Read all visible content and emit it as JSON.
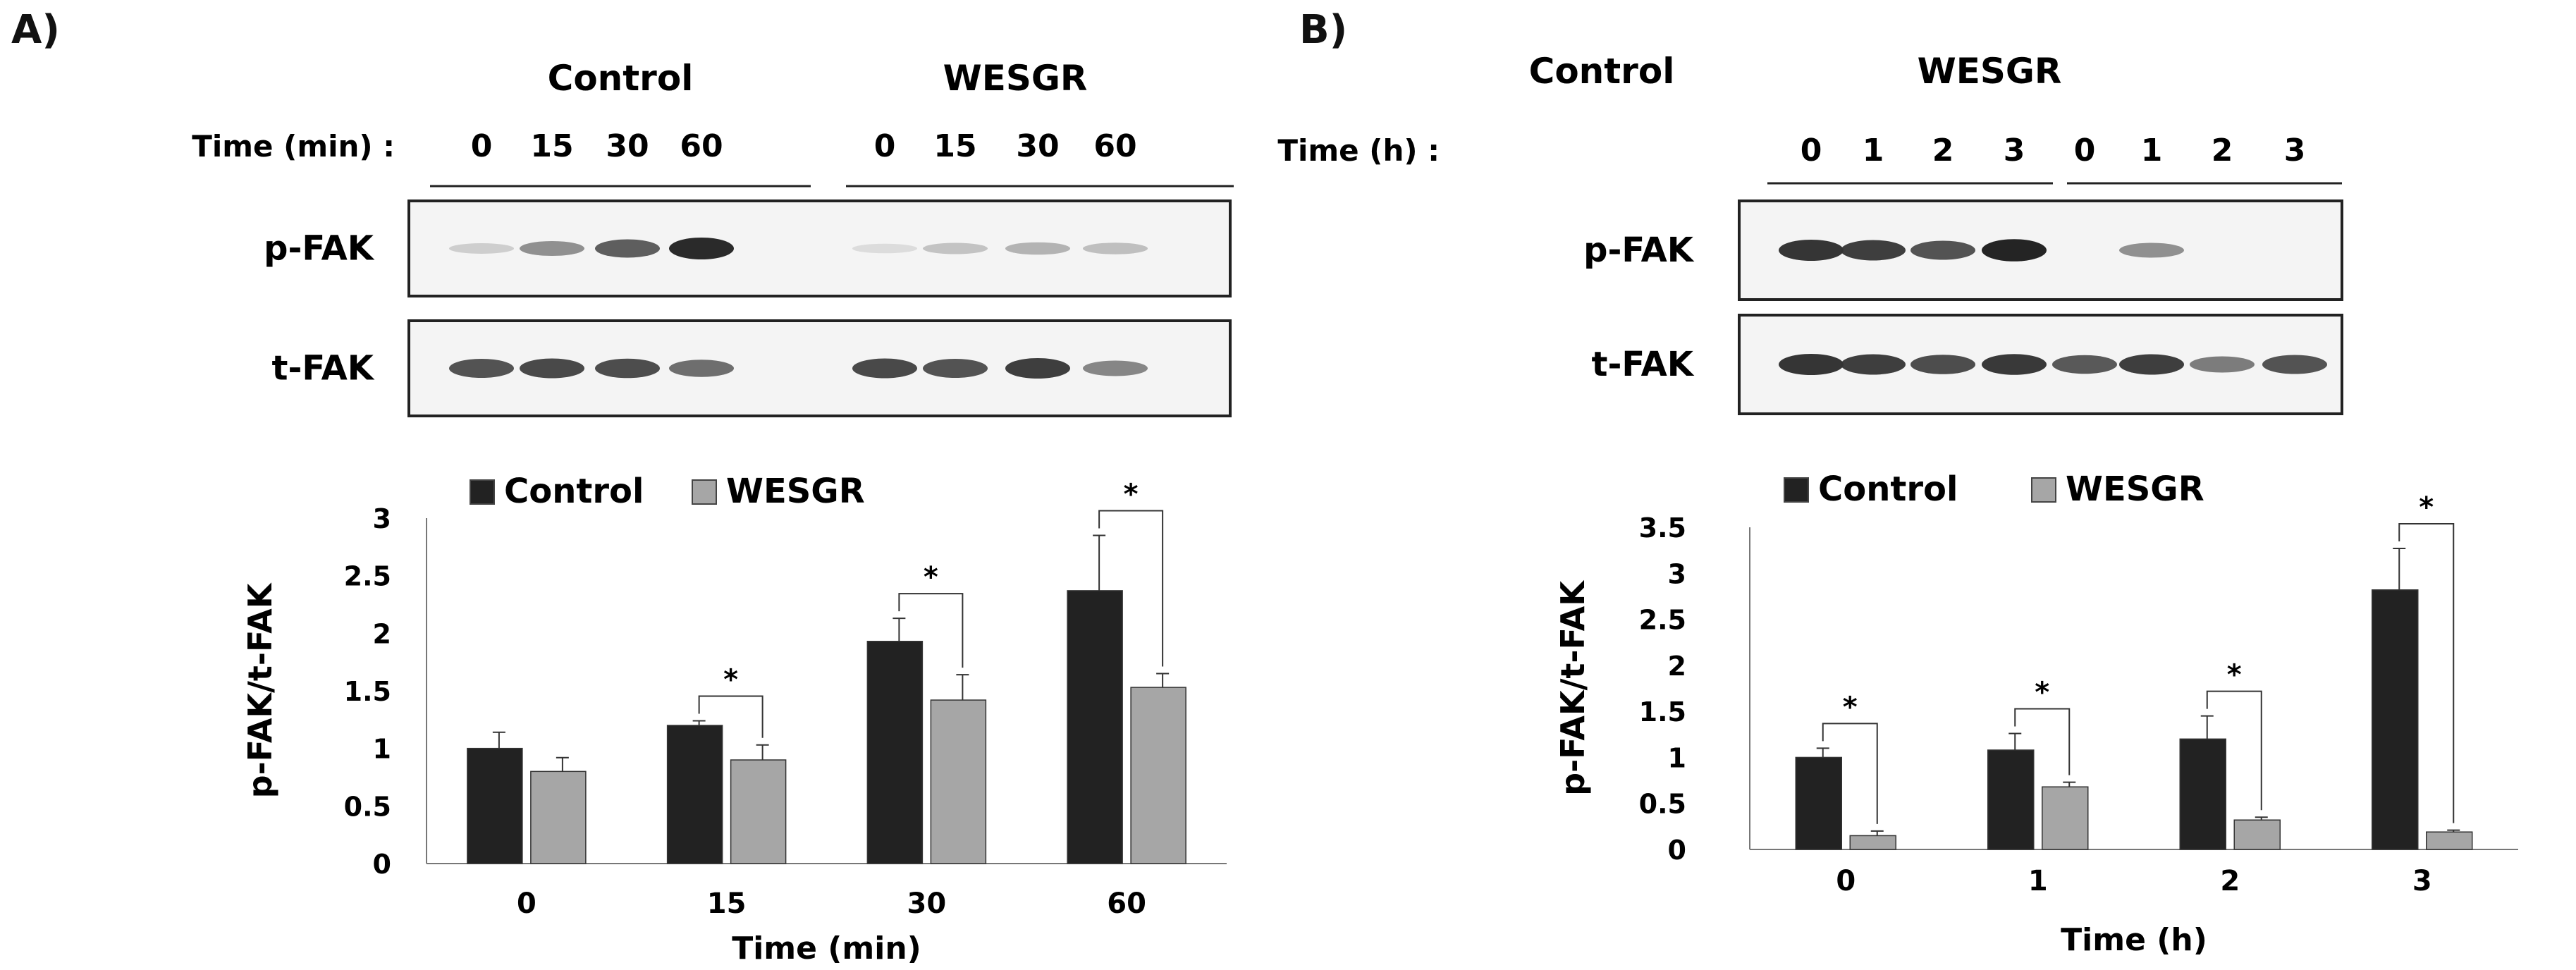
{
  "panels": [
    {
      "label": "A)",
      "blot": {
        "group_labels": [
          "Control",
          "WESGR"
        ],
        "time_label": "Time (min) :",
        "time_points": [
          "0",
          "15",
          "30",
          "60",
          "0",
          "15",
          "30",
          "60"
        ],
        "rows": [
          "p-FAK",
          "t-FAK"
        ]
      },
      "chart_data": {
        "type": "bar",
        "categories": [
          "0",
          "15",
          "30",
          "60"
        ],
        "series": [
          {
            "name": "Control",
            "values": [
              1.0,
              1.2,
              1.93,
              2.37
            ],
            "errors": [
              0.14,
              0.04,
              0.2,
              0.48
            ],
            "color": "#222222"
          },
          {
            "name": "WESGR",
            "values": [
              0.8,
              0.9,
              1.42,
              1.53
            ],
            "errors": [
              0.12,
              0.13,
              0.22,
              0.12
            ],
            "color": "#a6a6a6"
          }
        ],
        "xlabel": "Time (min)",
        "ylabel": "p-FAK/t-FAK",
        "ylim": [
          0,
          3
        ],
        "yticks": [
          "0",
          "0.5",
          "1",
          "1.5",
          "2",
          "2.5",
          "3"
        ],
        "legend": "top",
        "significance": [
          "",
          "*",
          "*",
          "*"
        ]
      }
    },
    {
      "label": "B)",
      "blot": {
        "group_labels": [
          "Control",
          "WESGR"
        ],
        "time_label": "Time (h) :",
        "time_points": [
          "0",
          "1",
          "2",
          "3",
          "0",
          "1",
          "2",
          "3"
        ],
        "rows": [
          "p-FAK",
          "t-FAK"
        ]
      },
      "chart_data": {
        "type": "bar",
        "categories": [
          "0",
          "1",
          "2",
          "3"
        ],
        "series": [
          {
            "name": "Control",
            "values": [
              1.0,
              1.08,
              1.2,
              2.82
            ],
            "errors": [
              0.1,
              0.18,
              0.25,
              0.45
            ],
            "color": "#222222"
          },
          {
            "name": "WESGR",
            "values": [
              0.15,
              0.68,
              0.32,
              0.19
            ],
            "errors": [
              0.05,
              0.05,
              0.03,
              0.02
            ],
            "color": "#a6a6a6"
          }
        ],
        "xlabel": "Time (h)",
        "ylabel": "p-FAK/t-FAK",
        "ylim": [
          0,
          3.5
        ],
        "yticks": [
          "0",
          "0.5",
          "1",
          "1.5",
          "2",
          "2.5",
          "3",
          "3.5"
        ],
        "legend": "top",
        "significance": [
          "*",
          "*",
          "*",
          "*"
        ]
      }
    }
  ]
}
